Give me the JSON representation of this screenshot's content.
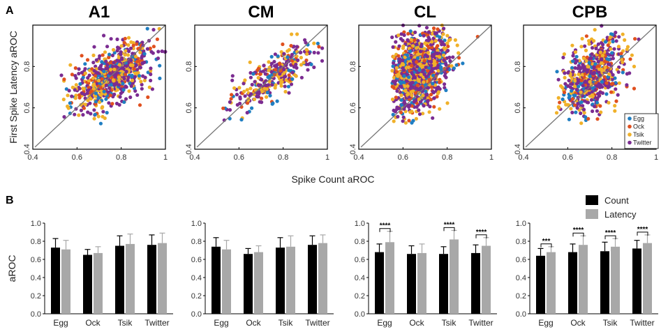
{
  "figure": {
    "panel_a_label": "A",
    "panel_b_label": "B"
  },
  "colors": {
    "Egg": "#1f7ec2",
    "Ock": "#e0501f",
    "Tsik": "#f0b12a",
    "Twitter": "#7b2c91",
    "Count": "#000000",
    "Latency": "#a8a8a8"
  },
  "chart_data": [
    {
      "type": "scatter",
      "panel": "A",
      "regions": [
        "A1",
        "CM",
        "CL",
        "CPB"
      ],
      "xlabel": "Spike Count aROC",
      "ylabel": "First Spike Latency aROC",
      "xlim": [
        0.4,
        1.0
      ],
      "ylim": [
        0.4,
        1.0
      ],
      "xticks": [
        "0.4",
        "0.6",
        "0.8",
        "1"
      ],
      "yticks": [
        "0.4",
        "0.6",
        "0.8",
        "1"
      ],
      "identity_line": true,
      "legend": {
        "entries": [
          "Egg",
          "Ock",
          "Tsik",
          "Twitter"
        ],
        "placement": "bottom-right of CPB panel"
      },
      "clouds": {
        "A1": {
          "n": 700,
          "x_mean": 0.76,
          "x_sd": 0.09,
          "y_mean": 0.75,
          "y_sd": 0.08,
          "corr": 0.55,
          "x_range": [
            0.52,
            1.0
          ],
          "y_range": [
            0.52,
            1.0
          ]
        },
        "CM": {
          "n": 330,
          "x_mean": 0.76,
          "x_sd": 0.09,
          "y_mean": 0.75,
          "y_sd": 0.08,
          "corr": 0.75,
          "x_range": [
            0.52,
            0.98
          ],
          "y_range": [
            0.54,
            1.0
          ]
        },
        "CL": {
          "n": 1100,
          "x_mean": 0.67,
          "x_sd": 0.07,
          "y_mean": 0.77,
          "y_sd": 0.1,
          "corr": 0.25,
          "x_range": [
            0.55,
            1.0
          ],
          "y_range": [
            0.52,
            1.0
          ]
        },
        "CPB": {
          "n": 600,
          "x_mean": 0.71,
          "x_sd": 0.07,
          "y_mean": 0.75,
          "y_sd": 0.09,
          "corr": 0.45,
          "x_range": [
            0.55,
            1.0
          ],
          "y_range": [
            0.52,
            1.0
          ]
        }
      }
    },
    {
      "type": "bar",
      "panel": "B",
      "ylabel": "aROC",
      "ylim": [
        0.0,
        1.0
      ],
      "yticks": [
        "0.0",
        "0.2",
        "0.4",
        "0.6",
        "0.8",
        "1.0"
      ],
      "categories": [
        "Egg",
        "Ock",
        "Tsik",
        "Twitter"
      ],
      "legend": {
        "entries": [
          "Count",
          "Latency"
        ],
        "placement": "top-right"
      },
      "groups": [
        {
          "region": "A1",
          "series": [
            {
              "name": "Count",
              "values": [
                0.73,
                0.65,
                0.75,
                0.76
              ],
              "err": [
                0.1,
                0.06,
                0.11,
                0.11
              ]
            },
            {
              "name": "Latency",
              "values": [
                0.71,
                0.67,
                0.77,
                0.78
              ],
              "err": [
                0.1,
                0.07,
                0.11,
                0.11
              ]
            }
          ],
          "significance": [
            "",
            "",
            "",
            ""
          ]
        },
        {
          "region": "CM",
          "series": [
            {
              "name": "Count",
              "values": [
                0.74,
                0.66,
                0.73,
                0.76
              ],
              "err": [
                0.1,
                0.06,
                0.11,
                0.1
              ]
            },
            {
              "name": "Latency",
              "values": [
                0.71,
                0.68,
                0.74,
                0.78
              ],
              "err": [
                0.1,
                0.07,
                0.12,
                0.09
              ]
            }
          ],
          "significance": [
            "",
            "",
            "",
            ""
          ]
        },
        {
          "region": "CL",
          "series": [
            {
              "name": "Count",
              "values": [
                0.68,
                0.66,
                0.66,
                0.67
              ],
              "err": [
                0.09,
                0.09,
                0.08,
                0.09
              ]
            },
            {
              "name": "Latency",
              "values": [
                0.79,
                0.67,
                0.82,
                0.75
              ],
              "err": [
                0.12,
                0.1,
                0.1,
                0.09
              ]
            }
          ],
          "significance": [
            "****",
            "",
            "****",
            "****"
          ]
        },
        {
          "region": "CPB",
          "series": [
            {
              "name": "Count",
              "values": [
                0.64,
                0.68,
                0.69,
                0.72
              ],
              "err": [
                0.08,
                0.09,
                0.1,
                0.09
              ]
            },
            {
              "name": "Latency",
              "values": [
                0.68,
                0.76,
                0.74,
                0.78
              ],
              "err": [
                0.06,
                0.1,
                0.09,
                0.09
              ]
            }
          ],
          "significance": [
            "***",
            "****",
            "****",
            "****"
          ]
        }
      ]
    }
  ]
}
